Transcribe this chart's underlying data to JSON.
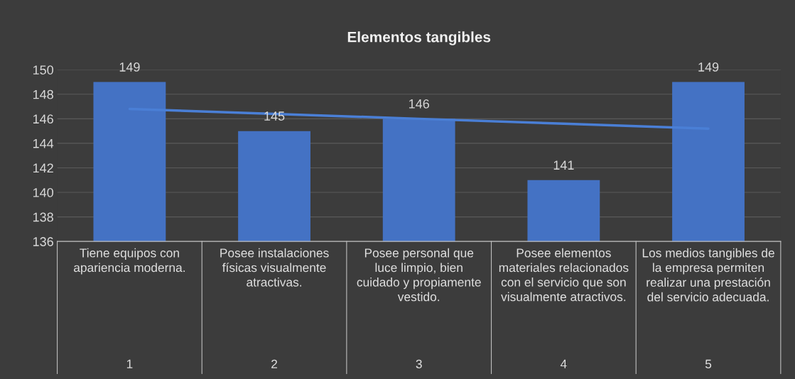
{
  "chart_data": {
    "type": "bar",
    "title": "Elementos tangibles",
    "categories": [
      "Tiene equipos con apariencia moderna.",
      "Posee instalaciones físicas visualmente atractivas.",
      "Posee personal que luce limpio, bien cuidado y propiamente vestido.",
      "Posee elementos materiales relacionados con el servicio que son visualmente atractivos.",
      "Los medios tangibles de la empresa permiten realizar una prestación del servicio adecuada."
    ],
    "series": [
      {
        "color": "#4472c4",
        "values": [
          149,
          145,
          146,
          141,
          149
        ],
        "value_labels": [
          "149",
          "145",
          "146",
          "141",
          "149"
        ]
      },
      {
        "type": "line",
        "color": "#4a7fd6",
        "values": [
          146.8,
          146.4,
          146.0,
          145.6,
          145.2
        ]
      }
    ],
    "annotations": [
      "1",
      "2",
      "3",
      "4",
      "5"
    ],
    "ylim": [
      136,
      150
    ],
    "yticks": [
      136,
      138,
      140,
      142,
      144,
      146,
      148,
      150
    ],
    "grid": "y",
    "legend": false
  }
}
